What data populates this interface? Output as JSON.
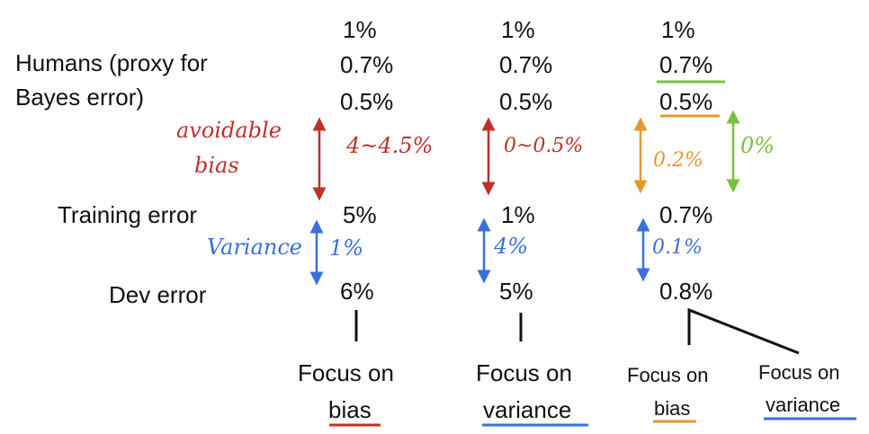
{
  "row_labels": {
    "humans_line1": "Humans (proxy for",
    "humans_line2": "Bayes error)",
    "training": "Training error",
    "dev": "Dev error"
  },
  "columns": [
    {
      "top": "1%",
      "human": "0.7%",
      "bayes": "0.5%",
      "train": "5%",
      "dev": "6%"
    },
    {
      "top": "1%",
      "human": "0.7%",
      "bayes": "0.5%",
      "train": "1%",
      "dev": "5%"
    },
    {
      "top": "1%",
      "human": "0.7%",
      "bayes": "0.5%",
      "train": "0.7%",
      "dev": "0.8%"
    }
  ],
  "annotations": {
    "avoidable_bias_line1": "avoidable",
    "avoidable_bias_line2": "bias",
    "variance": "Variance",
    "col1_bias": "4~4.5%",
    "col1_variance": "1%",
    "col2_bias": "0~0.5%",
    "col2_variance": "4%",
    "col3_bias_orange": "0.2%",
    "col3_bias_green": "0%",
    "col3_variance": "0.1%"
  },
  "focus": [
    {
      "line1": "Focus on",
      "line2": "bias"
    },
    {
      "line1": "Focus on",
      "line2": "variance"
    },
    {
      "line1": "Focus on",
      "line2": "bias"
    },
    {
      "line1": "Focus on",
      "line2": "variance"
    }
  ],
  "colors": {
    "red": "#c0302b",
    "blue": "#3a6fe0",
    "orange": "#e8962e",
    "green": "#7cbf3b"
  }
}
